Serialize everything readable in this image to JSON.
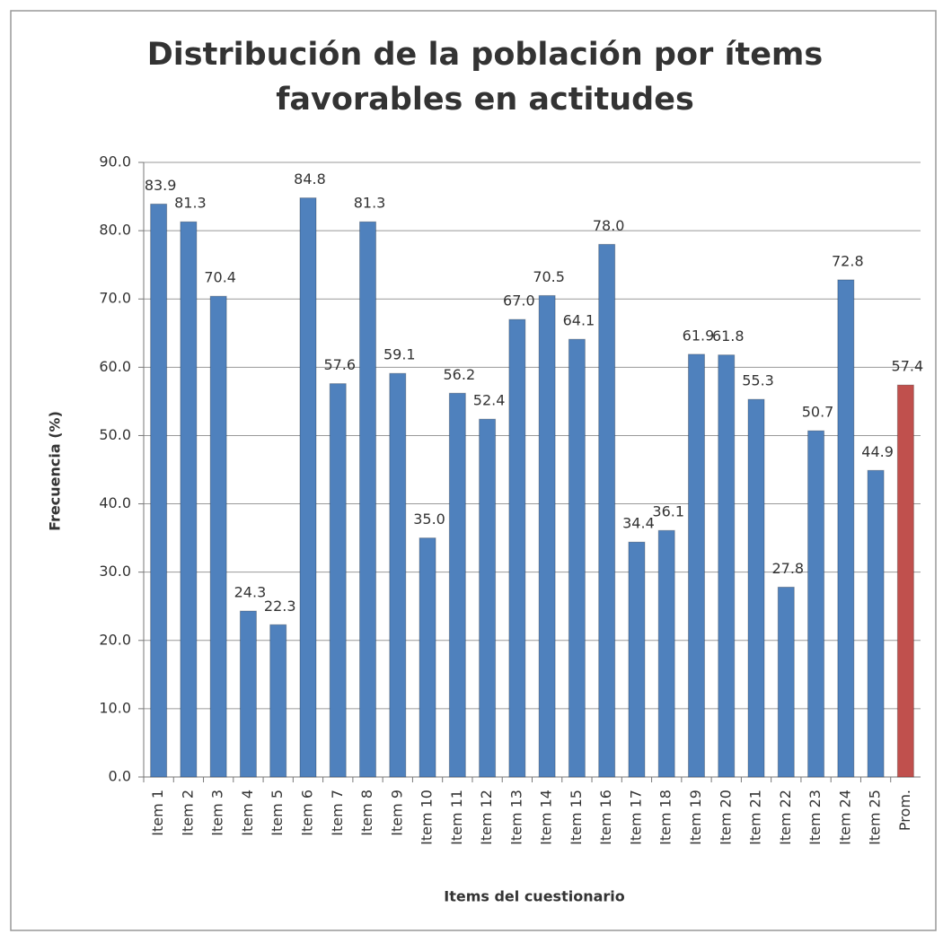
{
  "chart_data": {
    "type": "bar",
    "title": [
      "Distribución de la población por ítems",
      "favorables en actitudes"
    ],
    "y_label": "Frecuencia (%)",
    "x_label": "Items del cuestionario",
    "categories": [
      "Item 1",
      "Item 2",
      "Item 3",
      "Item 4",
      "Item 5",
      "Item 6",
      "Item 7",
      "Item 8",
      "Item 9",
      "Item 10",
      "Item 11",
      "Item 12",
      "Item 13",
      "Item 14",
      "Item 15",
      "Item 16",
      "Item 17",
      "Item 18",
      "Item 19",
      "Item 20",
      "Item 21",
      "Item 22",
      "Item 23",
      "Item 24",
      "Item 25",
      "Prom."
    ],
    "values": [
      83.9,
      81.3,
      70.4,
      24.3,
      22.3,
      84.8,
      57.6,
      81.3,
      59.1,
      35.0,
      56.2,
      52.4,
      67.0,
      70.5,
      64.1,
      78.0,
      34.4,
      36.1,
      61.9,
      61.8,
      55.3,
      27.8,
      50.7,
      72.8,
      44.9,
      57.4
    ],
    "value_labels": [
      "83.9",
      "81.3",
      "70.4",
      "24.3",
      "22.3",
      "84.8",
      "57.6",
      "81.3",
      "59.1",
      "35.0",
      "56.2",
      "52.4",
      "67.0",
      "70.5",
      "64.1",
      "78.0",
      "34.4",
      "36.1",
      "61.9",
      "61.8",
      "55.3",
      "27.8",
      "50.7",
      "72.8",
      "44.9",
      "57.4"
    ],
    "colors": [
      "#4f81bd",
      "#4f81bd",
      "#4f81bd",
      "#4f81bd",
      "#4f81bd",
      "#4f81bd",
      "#4f81bd",
      "#4f81bd",
      "#4f81bd",
      "#4f81bd",
      "#4f81bd",
      "#4f81bd",
      "#4f81bd",
      "#4f81bd",
      "#4f81bd",
      "#4f81bd",
      "#4f81bd",
      "#4f81bd",
      "#4f81bd",
      "#4f81bd",
      "#4f81bd",
      "#4f81bd",
      "#4f81bd",
      "#4f81bd",
      "#4f81bd",
      "#c0504d"
    ],
    "ylim": [
      0,
      90
    ],
    "yticks": [
      {
        "value": 0,
        "label": "0.0"
      },
      {
        "value": 10,
        "label": "10.0"
      },
      {
        "value": 20,
        "label": "20.0"
      },
      {
        "value": 30,
        "label": "30.0"
      },
      {
        "value": 40,
        "label": "40.0"
      },
      {
        "value": 50,
        "label": "50.0"
      },
      {
        "value": 60,
        "label": "60.0"
      },
      {
        "value": 70,
        "label": "70.0"
      },
      {
        "value": 80,
        "label": "80.0"
      },
      {
        "value": 90,
        "label": "90.0"
      }
    ],
    "grid": true
  }
}
